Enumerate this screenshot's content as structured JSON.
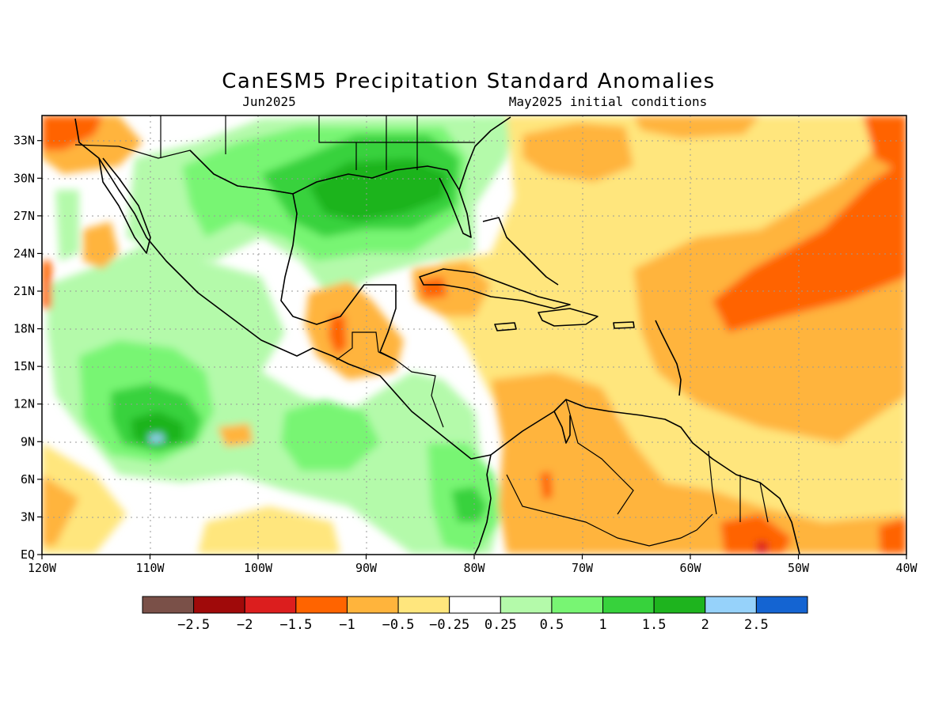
{
  "title": "CanESM5 Precipitation Standard Anomalies",
  "forecast_month": "Jun2025",
  "initial_conditions": "May2025 initial conditions",
  "map": {
    "lon_range": [
      -120,
      -40
    ],
    "lat_range": [
      0,
      35
    ],
    "x_ticks": [
      {
        "lon": -120,
        "label": "120W"
      },
      {
        "lon": -110,
        "label": "110W"
      },
      {
        "lon": -100,
        "label": "100W"
      },
      {
        "lon": -90,
        "label": "90W"
      },
      {
        "lon": -80,
        "label": "80W"
      },
      {
        "lon": -70,
        "label": "70W"
      },
      {
        "lon": -60,
        "label": "60W"
      },
      {
        "lon": -50,
        "label": "50W"
      },
      {
        "lon": -40,
        "label": "40W"
      }
    ],
    "y_ticks": [
      {
        "lat": 0,
        "label": "EQ"
      },
      {
        "lat": 3,
        "label": "3N"
      },
      {
        "lat": 6,
        "label": "6N"
      },
      {
        "lat": 9,
        "label": "9N"
      },
      {
        "lat": 12,
        "label": "12N"
      },
      {
        "lat": 15,
        "label": "15N"
      },
      {
        "lat": 18,
        "label": "18N"
      },
      {
        "lat": 21,
        "label": "21N"
      },
      {
        "lat": 24,
        "label": "24N"
      },
      {
        "lat": 27,
        "label": "27N"
      },
      {
        "lat": 30,
        "label": "30N"
      },
      {
        "lat": 33,
        "label": "33N"
      }
    ],
    "grid": true
  },
  "colorbar": {
    "colors": [
      "#7a5048",
      "#a00a0a",
      "#dc1e1e",
      "#ff6400",
      "#ffb43c",
      "#ffe67d",
      "#ffffff",
      "#b4faaa",
      "#78f573",
      "#37d23c",
      "#1eb41e",
      "#96d2fa",
      "#1464d2"
    ],
    "labels": [
      "−2.5",
      "−2",
      "−1.5",
      "−1",
      "−0.5",
      "−0.25",
      "0.25",
      "0.5",
      "1",
      "1.5",
      "2",
      "2.5"
    ]
  }
}
